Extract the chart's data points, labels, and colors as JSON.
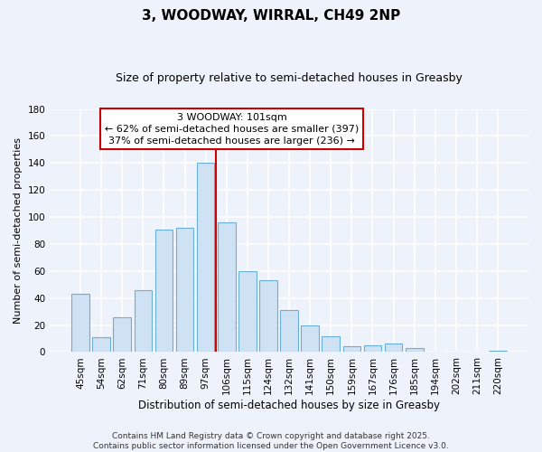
{
  "title": "3, WOODWAY, WIRRAL, CH49 2NP",
  "subtitle": "Size of property relative to semi-detached houses in Greasby",
  "xlabel": "Distribution of semi-detached houses by size in Greasby",
  "ylabel": "Number of semi-detached properties",
  "bar_labels": [
    "45sqm",
    "54sqm",
    "62sqm",
    "71sqm",
    "80sqm",
    "89sqm",
    "97sqm",
    "106sqm",
    "115sqm",
    "124sqm",
    "132sqm",
    "141sqm",
    "150sqm",
    "159sqm",
    "167sqm",
    "176sqm",
    "185sqm",
    "194sqm",
    "202sqm",
    "211sqm",
    "220sqm"
  ],
  "bar_values": [
    43,
    11,
    26,
    46,
    91,
    92,
    140,
    96,
    60,
    53,
    31,
    20,
    12,
    4,
    5,
    6,
    3,
    0,
    0,
    0,
    1
  ],
  "bar_color": "#cfe2f3",
  "bar_edge_color": "#6aafd6",
  "vline_x": 6.5,
  "vline_color": "#cc0000",
  "annotation_title": "3 WOODWAY: 101sqm",
  "annotation_line1": "← 62% of semi-detached houses are smaller (397)",
  "annotation_line2": "37% of semi-detached houses are larger (236) →",
  "annotation_box_facecolor": "#ffffff",
  "annotation_box_edgecolor": "#cc0000",
  "ylim": [
    0,
    180
  ],
  "yticks": [
    0,
    20,
    40,
    60,
    80,
    100,
    120,
    140,
    160,
    180
  ],
  "footer_line1": "Contains HM Land Registry data © Crown copyright and database right 2025.",
  "footer_line2": "Contains public sector information licensed under the Open Government Licence v3.0.",
  "bg_color": "#eef3fb",
  "grid_color": "#ffffff",
  "title_fontsize": 11,
  "subtitle_fontsize": 9,
  "ylabel_fontsize": 8,
  "xlabel_fontsize": 8.5,
  "tick_fontsize": 7.5,
  "annot_fontsize": 8,
  "footer_fontsize": 6.5
}
